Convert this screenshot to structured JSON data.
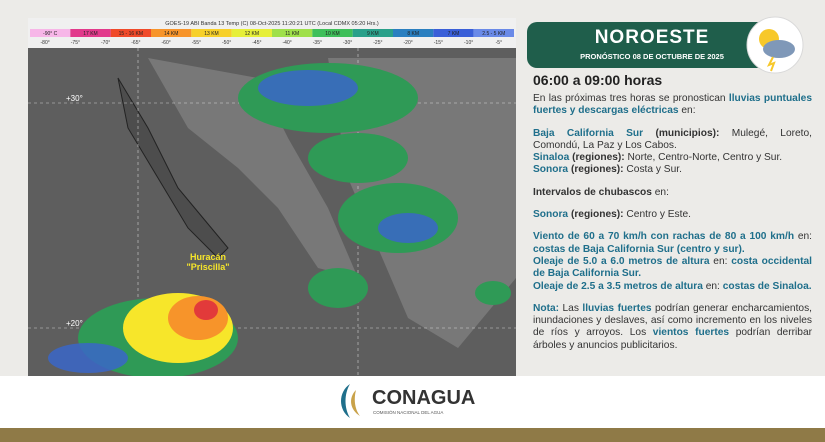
{
  "satellite": {
    "caption": "GOES-19 ABI Banda 13 Temp (C) 08-Oct-2025 11:20:21 UTC (Local CDMX 05:20 Hrs.)",
    "scale": [
      {
        "label": "-90° C",
        "color": "#f7b6e8"
      },
      {
        "label": "17 KM",
        "color": "#e23a8c"
      },
      {
        "label": "15 - 16 KM",
        "color": "#f04a2a"
      },
      {
        "label": "14 KM",
        "color": "#f7942a"
      },
      {
        "label": "13 KM",
        "color": "#f7d02a"
      },
      {
        "label": "12 KM",
        "color": "#e6ef3a"
      },
      {
        "label": "11 KM",
        "color": "#9fe04a"
      },
      {
        "label": "10 KM",
        "color": "#3fbf5a"
      },
      {
        "label": "9 KM",
        "color": "#2aa08a"
      },
      {
        "label": "8 KM",
        "color": "#2a7fc0"
      },
      {
        "label": "7 KM",
        "color": "#3a5fd8"
      },
      {
        "label": "2.5 - 5 KM",
        "color": "#6a8ae8"
      }
    ],
    "temps": [
      "-80°",
      "-75°",
      "-70°",
      "-65°",
      "-60°",
      "-55°",
      "-50°",
      "-45°",
      "-40°",
      "-35°",
      "-30°",
      "-25°",
      "-20°",
      "-15°",
      "-10°",
      "-5°"
    ],
    "lat_labels": [
      "+30°",
      "+20°"
    ],
    "storm": [
      "Huracán",
      "\"Priscilla\""
    ]
  },
  "panel": {
    "region": "NOROESTE",
    "subtitle": "PRONÓSTICO 08 DE OCTUBRE DE 2025",
    "period": "06:00 a 09:00 horas",
    "sections": [
      [
        [
          {
            "t": "En las próximas tres horas se pronostican ",
            "s": "n"
          },
          {
            "t": "lluvias puntuales fuertes y descargas eléctricas",
            "s": "b"
          },
          {
            "t": " en:",
            "s": "n"
          }
        ]
      ],
      [
        [
          {
            "t": "Baja California Sur",
            "s": "b"
          },
          {
            "t": " (municipios):",
            "s": "k"
          },
          {
            "t": " Mulegé, Loreto, Comondú, La Paz y Los Cabos.",
            "s": "n"
          }
        ],
        [
          {
            "t": "Sinaloa",
            "s": "b"
          },
          {
            "t": " (regiones):",
            "s": "k"
          },
          {
            "t": " Norte, Centro-Norte, Centro y Sur.",
            "s": "n"
          }
        ],
        [
          {
            "t": "Sonora",
            "s": "b"
          },
          {
            "t": " (regiones):",
            "s": "k"
          },
          {
            "t": " Costa y Sur.",
            "s": "n"
          }
        ]
      ],
      [
        [
          {
            "t": "Intervalos de chubascos",
            "s": "k"
          },
          {
            "t": " en:",
            "s": "n"
          }
        ]
      ],
      [
        [
          {
            "t": "Sonora",
            "s": "b"
          },
          {
            "t": " (regiones):",
            "s": "k"
          },
          {
            "t": " Centro y Este.",
            "s": "n"
          }
        ]
      ],
      [
        [
          {
            "t": "Viento de 60 a 70 km/h con rachas de 80 a 100 km/h",
            "s": "b"
          },
          {
            "t": " en: ",
            "s": "n"
          },
          {
            "t": "costas de Baja California Sur (centro y sur).",
            "s": "b"
          }
        ],
        [
          {
            "t": "Oleaje de 5.0 a 6.0 metros de altura",
            "s": "b"
          },
          {
            "t": " en: ",
            "s": "n"
          },
          {
            "t": "costa occidental de Baja California Sur.",
            "s": "b"
          }
        ],
        [
          {
            "t": "Oleaje de 2.5 a 3.5 metros de altura",
            "s": "b"
          },
          {
            "t": " en: ",
            "s": "n"
          },
          {
            "t": "costas de Sinaloa.",
            "s": "b"
          }
        ]
      ],
      [
        [
          {
            "t": "Nota:",
            "s": "b"
          },
          {
            "t": " Las ",
            "s": "n"
          },
          {
            "t": "lluvias fuertes",
            "s": "b"
          },
          {
            "t": " podrían generar encharcamientos, inundaciones y deslaves, así como incremento en los niveles de ríos y arroyos. Los ",
            "s": "n"
          },
          {
            "t": "vientos fuertes",
            "s": "b"
          },
          {
            "t": " podrían derribar árboles y anuncios publicitarios.",
            "s": "n"
          }
        ]
      ]
    ]
  },
  "footer": {
    "brand": "CONAGUA",
    "brand_sub": "COMISIÓN NACIONAL DEL AGUA"
  }
}
